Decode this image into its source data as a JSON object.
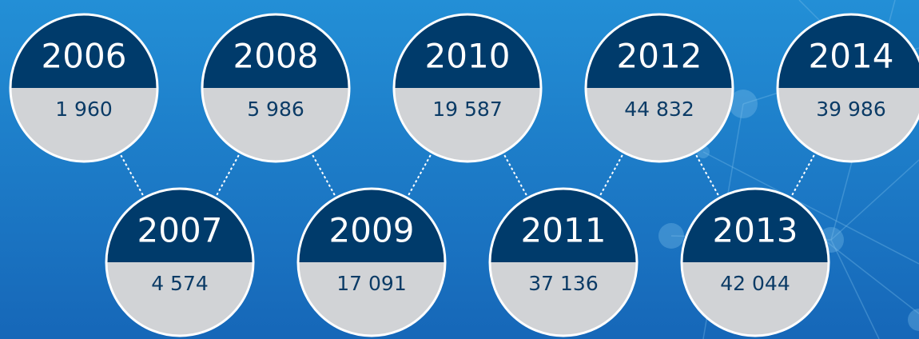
{
  "nodes": [
    {
      "year": "2006",
      "value": "1 960"
    },
    {
      "year": "2007",
      "value": "4 574"
    },
    {
      "year": "2008",
      "value": "5 986"
    },
    {
      "year": "2009",
      "value": "17 091"
    },
    {
      "year": "2010",
      "value": "19 587"
    },
    {
      "year": "2011",
      "value": "37 136"
    },
    {
      "year": "2012",
      "value": "44 832"
    },
    {
      "year": "2013",
      "value": "42 044"
    },
    {
      "year": "2014",
      "value": "39 986"
    }
  ]
}
